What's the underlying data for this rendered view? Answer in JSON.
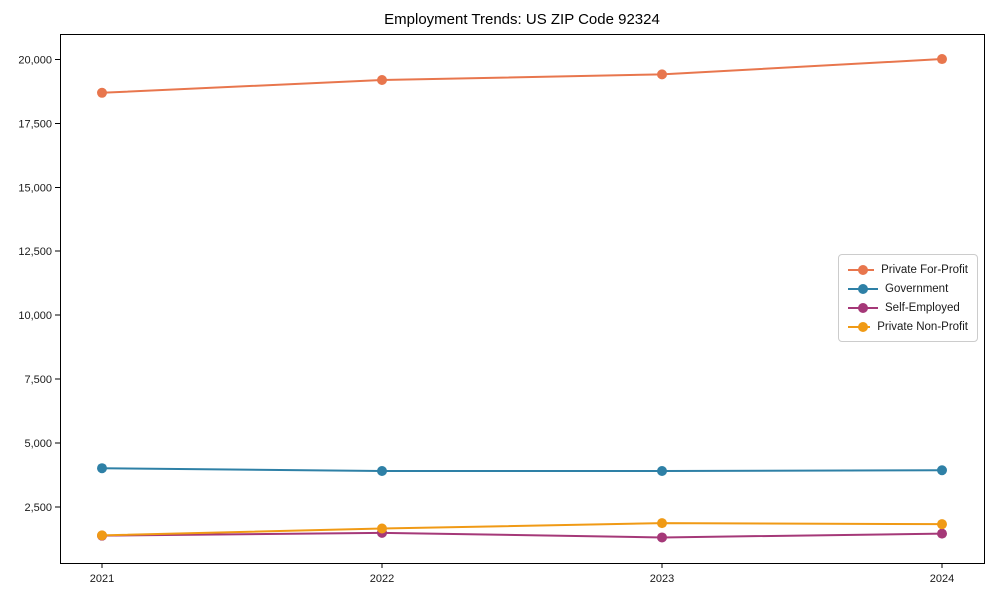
{
  "chart_data": {
    "type": "line",
    "title": "Employment Trends: US ZIP Code 92324",
    "xlabel": "",
    "ylabel": "",
    "x": [
      2021,
      2022,
      2023,
      2024
    ],
    "xtick_labels": [
      "2021",
      "2022",
      "2023",
      "2024"
    ],
    "series": [
      {
        "name": "Private For-Profit",
        "color": "#E8764D",
        "values": [
          18700,
          19200,
          19420,
          20020
        ]
      },
      {
        "name": "Government",
        "color": "#2E80A6",
        "values": [
          4010,
          3900,
          3900,
          3930
        ]
      },
      {
        "name": "Self-Employed",
        "color": "#A53878",
        "values": [
          1370,
          1480,
          1300,
          1450
        ]
      },
      {
        "name": "Private Non-Profit",
        "color": "#F09A15",
        "values": [
          1380,
          1650,
          1860,
          1820
        ]
      }
    ],
    "yticks": [
      2500,
      5000,
      7500,
      10000,
      12500,
      15000,
      17500,
      20000
    ],
    "ytick_labels": [
      "2,500",
      "5,000",
      "7,500",
      "10,000",
      "12,500",
      "15,000",
      "17,500",
      "20,000"
    ],
    "ylim": [
      300,
      21000
    ],
    "xlim": [
      2020.85,
      2024.15
    ],
    "grid": false,
    "legend_position": "center right",
    "axis_color": "#000000",
    "text_color": "#1a1a1a",
    "marker": "circle",
    "marker_radius": 5,
    "line_width": 2
  }
}
